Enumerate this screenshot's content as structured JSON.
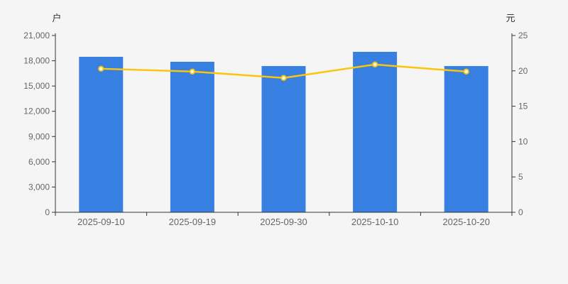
{
  "page": {
    "background": "#f5f5f5"
  },
  "chart_data": {
    "type": "bar+line",
    "title": "",
    "categories": [
      "2025-09-10",
      "2025-09-19",
      "2025-09-30",
      "2025-10-10",
      "2025-10-20"
    ],
    "series": [
      {
        "type": "bar",
        "axis": "left",
        "unit": "户",
        "color": "#3780e2",
        "values": [
          18470,
          17880,
          17370,
          19060,
          17370
        ]
      },
      {
        "type": "line",
        "axis": "right",
        "unit": "元",
        "color": "#fbc40d",
        "point_fill": "#ffffff",
        "values": [
          20.3,
          19.9,
          19.0,
          20.9,
          19.9
        ]
      }
    ],
    "left_axis": {
      "title": "户",
      "min": 0,
      "max": 21000,
      "tick_step": 3000,
      "tick_labels": [
        "0",
        "3,000",
        "6,000",
        "9,000",
        "12,000",
        "15,000",
        "18,000",
        "21,000"
      ]
    },
    "right_axis": {
      "title": "元",
      "min": 0,
      "max": 25,
      "tick_step": 5,
      "tick_labels": [
        "0",
        "5",
        "10",
        "15",
        "20",
        "25"
      ]
    },
    "grid": false,
    "legend": false,
    "colors": {
      "axis_line": "#333333",
      "tick_label": "#666666",
      "background": "#f5f5f5"
    }
  }
}
